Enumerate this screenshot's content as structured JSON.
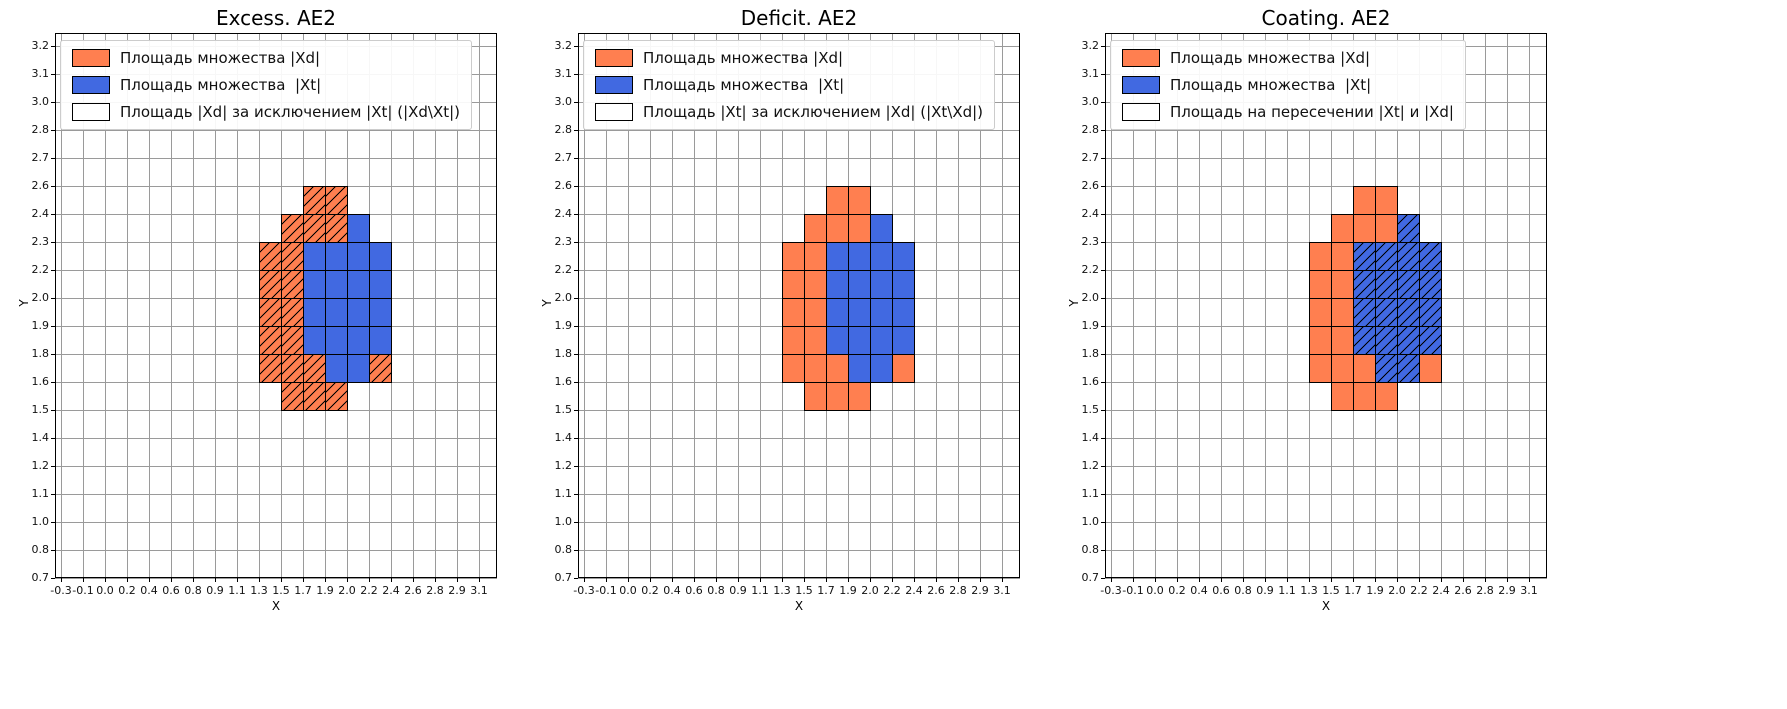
{
  "styles": {
    "background": "#ffffff",
    "grid_color": "#9a9a9a",
    "cell_edge": "#000000",
    "xd_color": "#FF7F50",
    "xt_color": "#4169E1"
  },
  "chart_data": [
    {
      "type": "heatmap",
      "title": "Excess. AE2",
      "xlabel": "X",
      "ylabel": "Y",
      "x_range": [
        -0.3,
        3.1
      ],
      "y_range": [
        0.7,
        3.2
      ],
      "grid": true,
      "legend_position": "upper left",
      "x_tick_labels": [
        "-0.3",
        "-0.1",
        "0.0",
        "0.2",
        "0.4",
        "0.6",
        "0.8",
        "0.9",
        "1.1",
        "1.3",
        "1.5",
        "1.7",
        "1.9",
        "2.0",
        "2.2",
        "2.4",
        "2.6",
        "2.8",
        "2.9",
        "3.1"
      ],
      "y_tick_labels": [
        "0.7",
        "0.8",
        "1.0",
        "1.1",
        "1.2",
        "1.4",
        "1.5",
        "1.6",
        "1.8",
        "1.9",
        "2.0",
        "2.2",
        "2.3",
        "2.4",
        "2.6",
        "2.7",
        "2.8",
        "3.0",
        "3.1",
        "3.2"
      ],
      "legend": [
        {
          "label": "Площадь множества |Xd|",
          "color": "#FF7F50",
          "hatch": false
        },
        {
          "label": "Площадь множества  |Xt|",
          "color": "#4169E1",
          "hatch": false
        },
        {
          "label": "Площадь |Xd| за исключением |Xt| (|Xd\\Xt|)",
          "color": "#ffffff",
          "hatch": true
        }
      ],
      "cells": {
        "unit": "[x_interval_index, y_interval_index] between grid ticks, y counted from bottom",
        "xd_minus_xt": [
          [
            11,
            13
          ],
          [
            12,
            13
          ],
          [
            10,
            12
          ],
          [
            11,
            12
          ],
          [
            12,
            12
          ],
          [
            9,
            11
          ],
          [
            10,
            11
          ],
          [
            9,
            10
          ],
          [
            10,
            10
          ],
          [
            9,
            9
          ],
          [
            10,
            9
          ],
          [
            9,
            8
          ],
          [
            10,
            8
          ],
          [
            9,
            7
          ],
          [
            10,
            7
          ],
          [
            11,
            7
          ],
          [
            14,
            7
          ],
          [
            10,
            6
          ],
          [
            11,
            6
          ],
          [
            12,
            6
          ]
        ],
        "xt": [
          [
            13,
            12
          ],
          [
            11,
            11
          ],
          [
            12,
            11
          ],
          [
            13,
            11
          ],
          [
            14,
            11
          ],
          [
            11,
            10
          ],
          [
            12,
            10
          ],
          [
            13,
            10
          ],
          [
            14,
            10
          ],
          [
            11,
            9
          ],
          [
            12,
            9
          ],
          [
            13,
            9
          ],
          [
            14,
            9
          ],
          [
            11,
            8
          ],
          [
            12,
            8
          ],
          [
            13,
            8
          ],
          [
            14,
            8
          ],
          [
            12,
            7
          ],
          [
            13,
            7
          ]
        ],
        "hatched_set": "xd_minus_xt"
      }
    },
    {
      "type": "heatmap",
      "title": "Deficit. AE2",
      "xlabel": "X",
      "ylabel": "Y",
      "x_range": [
        -0.3,
        3.1
      ],
      "y_range": [
        0.7,
        3.2
      ],
      "grid": true,
      "legend_position": "upper left",
      "x_tick_labels": [
        "-0.3",
        "-0.1",
        "0.0",
        "0.2",
        "0.4",
        "0.6",
        "0.8",
        "0.9",
        "1.1",
        "1.3",
        "1.5",
        "1.7",
        "1.9",
        "2.0",
        "2.2",
        "2.4",
        "2.6",
        "2.8",
        "2.9",
        "3.1"
      ],
      "y_tick_labels": [
        "0.7",
        "0.8",
        "1.0",
        "1.1",
        "1.2",
        "1.4",
        "1.5",
        "1.6",
        "1.8",
        "1.9",
        "2.0",
        "2.2",
        "2.3",
        "2.4",
        "2.6",
        "2.7",
        "2.8",
        "3.0",
        "3.1",
        "3.2"
      ],
      "legend": [
        {
          "label": "Площадь множества |Xd|",
          "color": "#FF7F50",
          "hatch": false
        },
        {
          "label": "Площадь множества  |Xt|",
          "color": "#4169E1",
          "hatch": false
        },
        {
          "label": "Площадь |Xt| за исключением |Xd| (|Xt\\Xd|)",
          "color": "#ffffff",
          "hatch": false
        }
      ],
      "cells": {
        "unit": "[x_interval_index, y_interval_index] between grid ticks, y counted from bottom",
        "xd_minus_xt": [
          [
            11,
            13
          ],
          [
            12,
            13
          ],
          [
            10,
            12
          ],
          [
            11,
            12
          ],
          [
            12,
            12
          ],
          [
            9,
            11
          ],
          [
            10,
            11
          ],
          [
            9,
            10
          ],
          [
            10,
            10
          ],
          [
            9,
            9
          ],
          [
            10,
            9
          ],
          [
            9,
            8
          ],
          [
            10,
            8
          ],
          [
            9,
            7
          ],
          [
            10,
            7
          ],
          [
            11,
            7
          ],
          [
            14,
            7
          ],
          [
            10,
            6
          ],
          [
            11,
            6
          ],
          [
            12,
            6
          ]
        ],
        "xt": [
          [
            13,
            12
          ],
          [
            11,
            11
          ],
          [
            12,
            11
          ],
          [
            13,
            11
          ],
          [
            14,
            11
          ],
          [
            11,
            10
          ],
          [
            12,
            10
          ],
          [
            13,
            10
          ],
          [
            14,
            10
          ],
          [
            11,
            9
          ],
          [
            12,
            9
          ],
          [
            13,
            9
          ],
          [
            14,
            9
          ],
          [
            11,
            8
          ],
          [
            12,
            8
          ],
          [
            13,
            8
          ],
          [
            14,
            8
          ],
          [
            12,
            7
          ],
          [
            13,
            7
          ]
        ],
        "hatched_set": "none"
      }
    },
    {
      "type": "heatmap",
      "title": "Coating. AE2",
      "xlabel": "X",
      "ylabel": "Y",
      "x_range": [
        -0.3,
        3.1
      ],
      "y_range": [
        0.7,
        3.2
      ],
      "grid": true,
      "legend_position": "upper left",
      "x_tick_labels": [
        "-0.3",
        "-0.1",
        "0.0",
        "0.2",
        "0.4",
        "0.6",
        "0.8",
        "0.9",
        "1.1",
        "1.3",
        "1.5",
        "1.7",
        "1.9",
        "2.0",
        "2.2",
        "2.4",
        "2.6",
        "2.8",
        "2.9",
        "3.1"
      ],
      "y_tick_labels": [
        "0.7",
        "0.8",
        "1.0",
        "1.1",
        "1.2",
        "1.4",
        "1.5",
        "1.6",
        "1.8",
        "1.9",
        "2.0",
        "2.2",
        "2.3",
        "2.4",
        "2.6",
        "2.7",
        "2.8",
        "3.0",
        "3.1",
        "3.2"
      ],
      "legend": [
        {
          "label": "Площадь множества |Xd|",
          "color": "#FF7F50",
          "hatch": false
        },
        {
          "label": "Площадь множества  |Xt|",
          "color": "#4169E1",
          "hatch": false
        },
        {
          "label": "Площадь на пересечении |Xt| и |Xd|",
          "color": "#ffffff",
          "hatch": true
        }
      ],
      "cells": {
        "unit": "[x_interval_index, y_interval_index] between grid ticks, y counted from bottom",
        "xd_minus_xt": [
          [
            11,
            13
          ],
          [
            12,
            13
          ],
          [
            10,
            12
          ],
          [
            11,
            12
          ],
          [
            12,
            12
          ],
          [
            9,
            11
          ],
          [
            10,
            11
          ],
          [
            9,
            10
          ],
          [
            10,
            10
          ],
          [
            9,
            9
          ],
          [
            10,
            9
          ],
          [
            9,
            8
          ],
          [
            10,
            8
          ],
          [
            9,
            7
          ],
          [
            10,
            7
          ],
          [
            11,
            7
          ],
          [
            14,
            7
          ],
          [
            10,
            6
          ],
          [
            11,
            6
          ],
          [
            12,
            6
          ]
        ],
        "xt": [
          [
            13,
            12
          ],
          [
            11,
            11
          ],
          [
            12,
            11
          ],
          [
            13,
            11
          ],
          [
            14,
            11
          ],
          [
            11,
            10
          ],
          [
            12,
            10
          ],
          [
            13,
            10
          ],
          [
            14,
            10
          ],
          [
            11,
            9
          ],
          [
            12,
            9
          ],
          [
            13,
            9
          ],
          [
            14,
            9
          ],
          [
            11,
            8
          ],
          [
            12,
            8
          ],
          [
            13,
            8
          ],
          [
            14,
            8
          ],
          [
            12,
            7
          ],
          [
            13,
            7
          ]
        ],
        "hatched_set": "xt"
      }
    }
  ]
}
